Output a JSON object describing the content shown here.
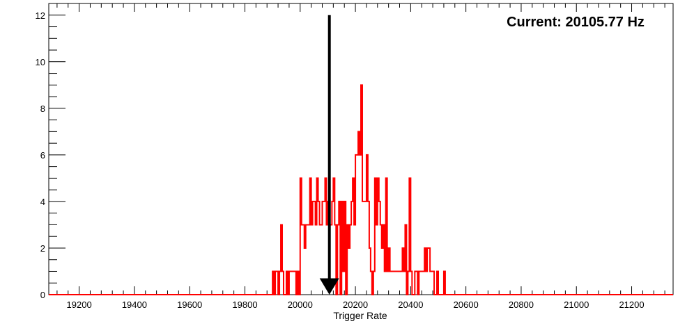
{
  "chart_data": {
    "type": "histogram",
    "xlabel": "Trigger Rate",
    "ylabel": "",
    "title": "",
    "annotation": "Current: 20105.77 Hz",
    "marker_x": 20105.77,
    "xlim": [
      19090,
      21350
    ],
    "ylim": [
      0,
      12.5
    ],
    "x_ticks": [
      19200,
      19400,
      19600,
      19800,
      20000,
      20200,
      20400,
      20600,
      20800,
      21000,
      21200
    ],
    "y_ticks": [
      0,
      2,
      4,
      6,
      8,
      10,
      12
    ],
    "bin_width": 5,
    "bins_x": [
      19900,
      19905,
      19910,
      19915,
      19920,
      19925,
      19930,
      19935,
      19940,
      19945,
      19950,
      19955,
      19960,
      19965,
      19970,
      19975,
      19980,
      19985,
      19990,
      19995,
      20000,
      20005,
      20010,
      20015,
      20020,
      20025,
      20030,
      20035,
      20040,
      20045,
      20050,
      20055,
      20060,
      20065,
      20070,
      20075,
      20080,
      20085,
      20090,
      20095,
      20100,
      20105,
      20110,
      20115,
      20120,
      20125,
      20130,
      20135,
      20140,
      20145,
      20150,
      20155,
      20160,
      20165,
      20170,
      20175,
      20180,
      20185,
      20190,
      20195,
      20200,
      20205,
      20210,
      20215,
      20220,
      20225,
      20230,
      20235,
      20240,
      20245,
      20250,
      20255,
      20260,
      20265,
      20270,
      20275,
      20280,
      20285,
      20290,
      20295,
      20300,
      20305,
      20310,
      20315,
      20320,
      20325,
      20330,
      20335,
      20340,
      20345,
      20350,
      20355,
      20360,
      20365,
      20370,
      20375,
      20380,
      20385,
      20390,
      20395,
      20400,
      20405,
      20410,
      20415,
      20420,
      20425,
      20430,
      20435,
      20440,
      20445,
      20450,
      20455,
      20460,
      20465,
      20470,
      20475,
      20480,
      20485,
      20490,
      20495,
      20500,
      20505,
      20510,
      20515,
      20520,
      20525,
      20530,
      20535,
      20540,
      20545,
      20550,
      20555,
      20560,
      20565,
      20570,
      20575,
      20580,
      20585,
      20590,
      20595
    ],
    "bins_y": [
      1,
      0,
      1,
      1,
      0,
      1,
      3,
      1,
      0,
      0,
      1,
      0,
      1,
      1,
      1,
      1,
      1,
      0,
      1,
      0,
      5,
      3,
      3,
      2,
      3,
      3,
      3,
      5,
      3,
      4,
      4,
      3,
      5,
      4,
      3,
      3,
      4,
      4,
      5,
      3,
      4,
      3,
      3,
      4,
      5,
      3,
      0,
      3,
      4,
      0,
      4,
      1,
      4,
      0,
      3,
      2,
      3,
      4,
      5,
      3,
      6,
      6,
      7,
      6,
      9,
      4,
      4,
      4,
      6,
      4,
      2,
      1,
      0,
      1,
      5,
      3,
      5,
      4,
      3,
      2,
      3,
      1,
      5,
      1,
      2,
      1,
      1,
      1,
      1,
      1,
      1,
      1,
      1,
      1,
      2,
      1,
      3,
      0,
      1,
      5,
      1,
      0,
      0,
      1,
      1,
      0,
      1,
      1,
      1,
      1,
      2,
      1,
      2,
      2,
      1,
      1,
      1,
      0,
      0,
      1,
      0,
      0,
      0,
      0,
      1,
      0,
      0,
      0,
      0,
      0,
      0,
      0,
      0,
      0,
      0,
      0,
      0,
      0,
      0,
      0
    ],
    "series": [
      {
        "name": "",
        "color": "#ff0000"
      }
    ],
    "marker_color": "#000000",
    "grid": false,
    "legend": "none"
  }
}
